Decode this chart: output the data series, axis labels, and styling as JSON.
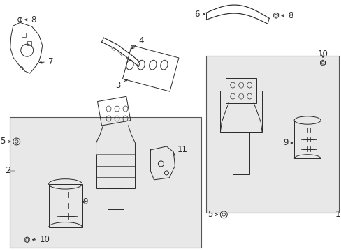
{
  "bg_color": "#ffffff",
  "part_color": "#2a2a2a",
  "box_fill": "#e8e8e8",
  "box_edge": "#555555",
  "lw": 0.7,
  "fs": 8.5
}
